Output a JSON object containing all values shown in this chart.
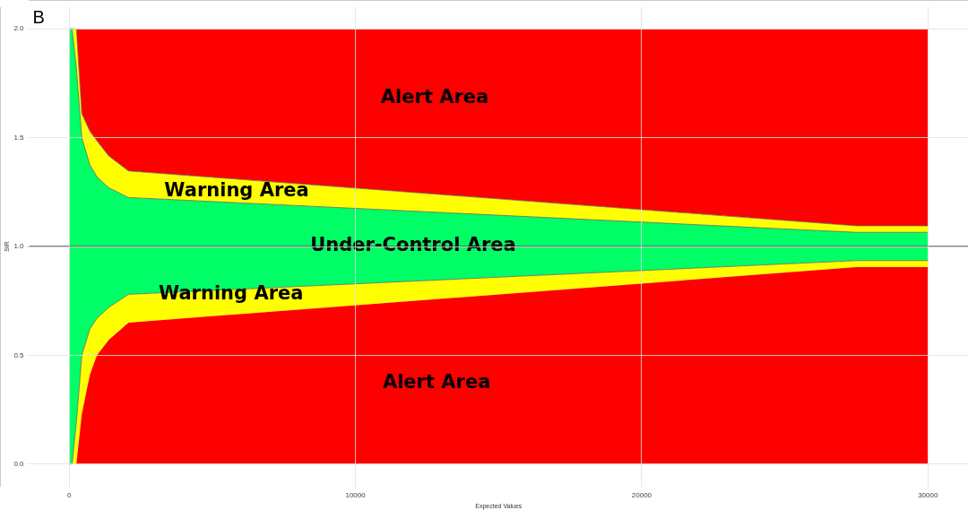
{
  "chart_data": {
    "type": "area",
    "title": "B",
    "xlabel": "Expected Values",
    "ylabel": "SIR",
    "xlim": [
      -1400,
      31400
    ],
    "ylim": [
      -0.1,
      2.1
    ],
    "xticks": [
      0,
      10000,
      20000,
      30000
    ],
    "yticks": [
      {
        "value": 0,
        "label": "0.0"
      },
      {
        "value": 0.5,
        "label": "0.5"
      },
      {
        "value": 1,
        "label": "1.0"
      },
      {
        "value": 1.5,
        "label": "1.5"
      },
      {
        "value": 2,
        "label": "2.0"
      }
    ],
    "grid": true,
    "stacked": true,
    "x": [
      0,
      100,
      250,
      440,
      720,
      970,
      1380,
      2070,
      27500,
      30000
    ],
    "series": [
      {
        "color": "#ff0000",
        "values": [
          0,
          0,
          0,
          0.23,
          0.41,
          0.5,
          0.57,
          0.65,
          0.905,
          0.905
        ]
      },
      {
        "color": "#ffff00",
        "values": [
          0,
          0,
          0.19,
          0.27,
          0.21,
          0.17,
          0.15,
          0.13,
          0.03,
          0.03
        ]
      },
      {
        "color": "#00ff66",
        "values": [
          2,
          2,
          1.63,
          1.0,
          0.755,
          0.65,
          0.55,
          0.445,
          0.13,
          0.13
        ]
      },
      {
        "color": "#ffff00",
        "values": [
          0,
          0,
          0.18,
          0.11,
          0.155,
          0.165,
          0.146,
          0.122,
          0.03,
          0.03
        ]
      },
      {
        "color": "#ff0000",
        "values": [
          0,
          0,
          0,
          0.39,
          0.47,
          0.515,
          0.584,
          0.653,
          0.905,
          0.905
        ]
      }
    ],
    "ref_lines": [
      {
        "axis": "y",
        "value": 1,
        "color": "#555555"
      }
    ],
    "annotations": [
      "Alert Area",
      "Warning Area",
      "Under-Control Area",
      "Warning Area",
      "Alert Area"
    ]
  }
}
